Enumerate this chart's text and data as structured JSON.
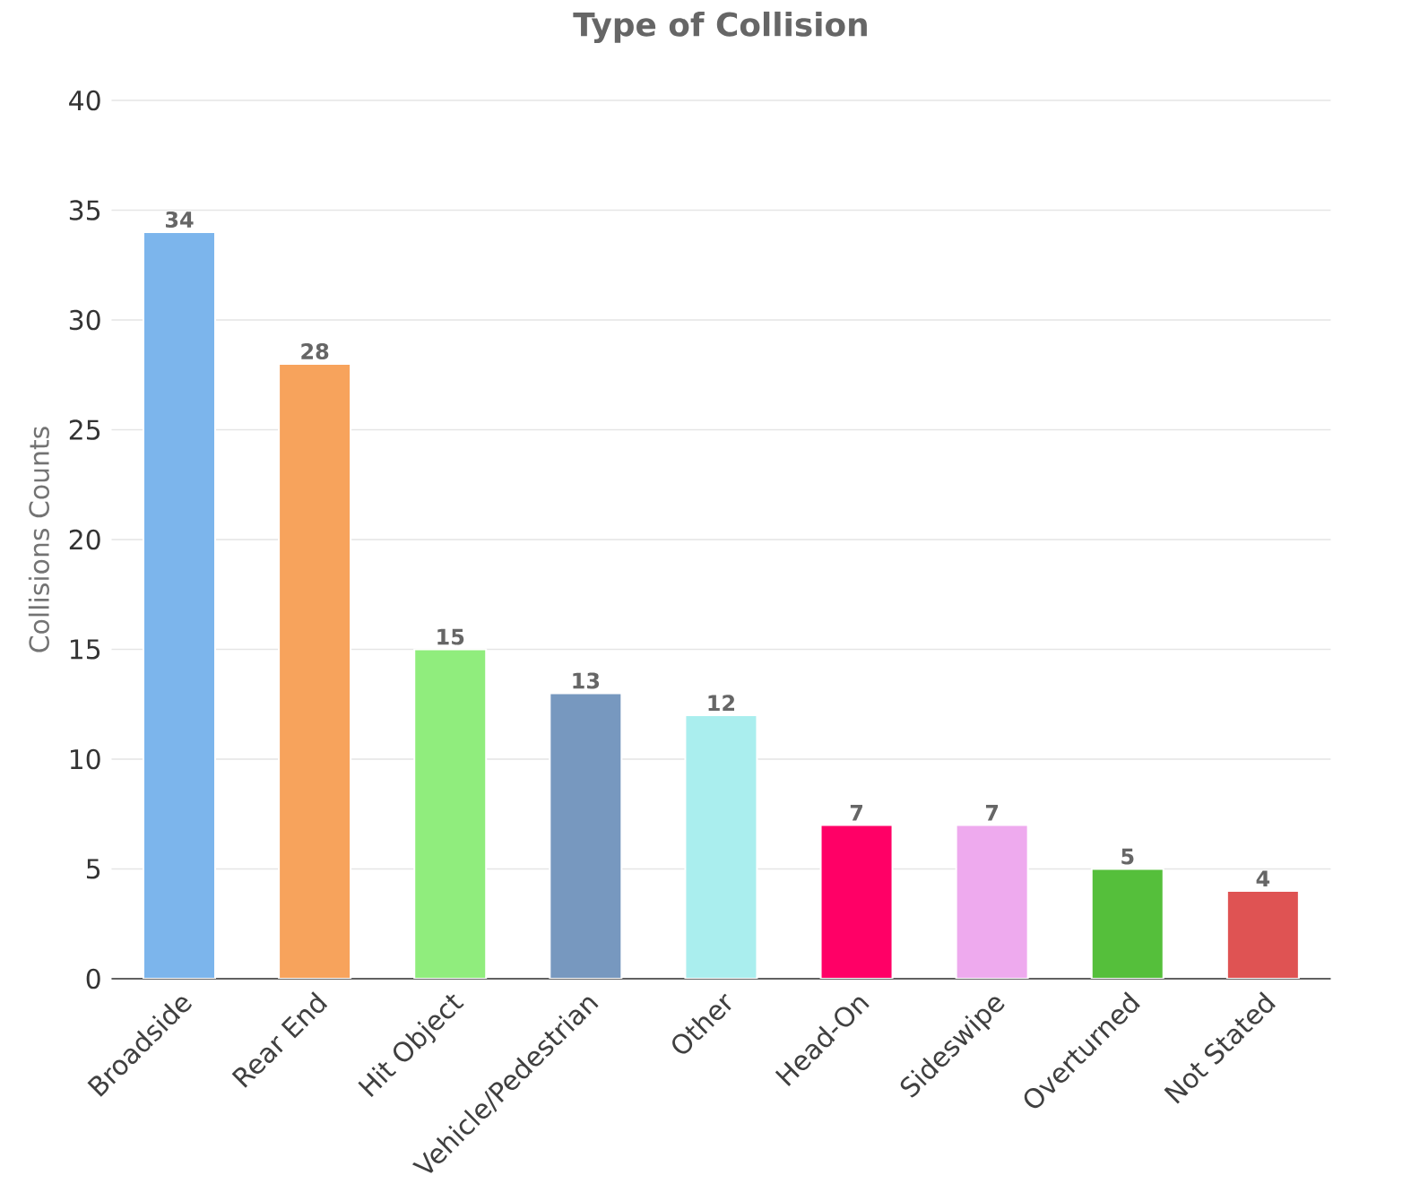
{
  "chart_data": {
    "type": "bar",
    "title": "Type of Collision",
    "ylabel": "Collisions Counts",
    "categories": [
      "Broadside",
      "Rear End",
      "Hit Object",
      "Vehicle/Pedestrian",
      "Other",
      "Head-On",
      "Sideswipe",
      "Overturned",
      "Not Stated"
    ],
    "values": [
      34,
      28,
      15,
      13,
      12,
      7,
      7,
      5,
      4
    ],
    "colors": [
      "#7cb5ec",
      "#f7a35c",
      "#90ed7d",
      "#7798bf",
      "#aaeeee",
      "#ff0066",
      "#eeaaee",
      "#55bf3b",
      "#df5353"
    ],
    "ylim": [
      0,
      40
    ],
    "yticks": [
      0,
      5,
      10,
      15,
      20,
      25,
      30,
      35,
      40
    ],
    "grid": "y",
    "data_labels": true
  }
}
